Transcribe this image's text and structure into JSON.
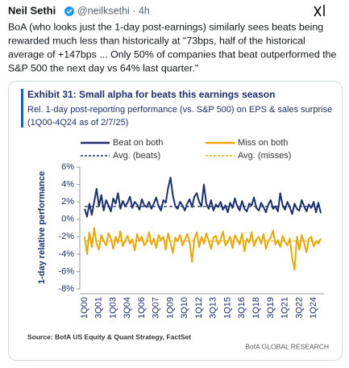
{
  "tweet": {
    "name": "Neil Sethi",
    "handle": "@neilksethi · 4h",
    "text_lines": [
      "BoA (who looks just the 1-day post-earnings) similarly sees beats being",
      "rewarded much less than historically at \"73bps, half of the historical",
      "average of +147bps ... Only 50% of companies that beat outperformed the",
      "S&P 500 the next day vs 64% last quarter.\""
    ]
  },
  "chart_data": {
    "type": "line",
    "title": "Exhibit 31: Small alpha for beats this earnings season",
    "subtitle": [
      "Rel. 1-day post-reporting performance (vs. S&P 500) on EPS & sales surprise",
      "(1Q00-4Q24 as of 2/7/25)"
    ],
    "ylabel": "1-day relative performance",
    "source": "Source: BofA US Equity & Quant Strategy, FactSet",
    "brand": "BofA GLOBAL RESEARCH",
    "categories": [
      "1Q00",
      null,
      null,
      null,
      null,
      null,
      "3Q01",
      null,
      null,
      null,
      null,
      null,
      "1Q03",
      null,
      null,
      null,
      null,
      null,
      "3Q04",
      null,
      null,
      null,
      null,
      null,
      "1Q06",
      null,
      null,
      null,
      null,
      null,
      "3Q07",
      null,
      null,
      null,
      null,
      null,
      "1Q09",
      null,
      null,
      null,
      null,
      null,
      "3Q10",
      null,
      null,
      null,
      null,
      null,
      "1Q12",
      null,
      null,
      null,
      null,
      null,
      "3Q13",
      null,
      null,
      null,
      null,
      null,
      "1Q15",
      null,
      null,
      null,
      null,
      null,
      "3Q16",
      null,
      null,
      null,
      null,
      null,
      "1Q18",
      null,
      null,
      null,
      null,
      null,
      "3Q19",
      null,
      null,
      null,
      null,
      null,
      "1Q21",
      null,
      null,
      null,
      null,
      null,
      "3Q22",
      null,
      null,
      null,
      null,
      null,
      "1Q24",
      null,
      null,
      null
    ],
    "series": [
      {
        "name": "Beat on both",
        "color": "#1a2f6e",
        "values": [
          1.2,
          0.3,
          1.8,
          0.5,
          2.0,
          3.5,
          1.5,
          2.8,
          1.0,
          2.2,
          1.6,
          0.9,
          2.4,
          1.8,
          3.0,
          1.2,
          2.1,
          1.5,
          1.9,
          2.6,
          1.3,
          2.0,
          1.7,
          1.1,
          2.3,
          1.6,
          1.4,
          2.0,
          1.2,
          1.8,
          2.5,
          1.5,
          1.0,
          2.2,
          1.9,
          3.6,
          4.8,
          2.7,
          1.5,
          1.2,
          2.0,
          1.6,
          1.0,
          1.8,
          2.3,
          1.4,
          2.6,
          3.0,
          2.0,
          1.5,
          4.0,
          1.8,
          1.2,
          2.2,
          1.0,
          1.7,
          1.4,
          2.0,
          1.1,
          1.6,
          0.8,
          1.9,
          1.3,
          2.4,
          1.5,
          1.0,
          2.1,
          1.2,
          0.9,
          1.8,
          1.6,
          2.5,
          1.3,
          1.0,
          1.9,
          1.4,
          0.8,
          1.7,
          2.2,
          1.2,
          1.5,
          0.9,
          3.0,
          1.6,
          1.1,
          2.0,
          1.4,
          0.6,
          1.8,
          1.2,
          1.0,
          2.2,
          1.5,
          0.9,
          1.7,
          1.3,
          2.0,
          0.8,
          1.9,
          0.7
        ]
      },
      {
        "name": "Miss on both",
        "color": "#f0a500",
        "values": [
          -2.0,
          -4.0,
          -1.5,
          -3.2,
          -1.0,
          -2.8,
          -3.5,
          -1.8,
          -2.5,
          -3.0,
          -1.6,
          -2.2,
          -3.4,
          -2.0,
          -2.7,
          -1.4,
          -3.1,
          -2.4,
          -1.9,
          -2.8,
          -2.3,
          -3.6,
          -1.7,
          -2.5,
          -2.0,
          -3.0,
          -2.6,
          -1.5,
          -2.9,
          -2.2,
          -3.3,
          -1.8,
          -2.4,
          -2.0,
          -3.5,
          -1.6,
          -2.7,
          -3.9,
          -2.1,
          -2.5,
          -1.8,
          -3.0,
          -2.4,
          -1.7,
          -2.6,
          -4.9,
          -2.2,
          -1.5,
          -3.2,
          -2.0,
          -2.8,
          -1.6,
          -2.5,
          -3.4,
          -2.1,
          -1.9,
          -2.9,
          -2.3,
          -1.4,
          -3.0,
          -2.6,
          -2.0,
          -3.3,
          -1.8,
          -2.4,
          -2.9,
          -1.6,
          -3.7,
          -2.2,
          -2.7,
          -1.5,
          -3.1,
          -2.3,
          -2.0,
          -2.8,
          -1.7,
          -3.4,
          -2.5,
          -2.1,
          -1.3,
          -2.9,
          -2.4,
          -3.2,
          -1.9,
          -2.6,
          -3.0,
          -2.2,
          -4.5,
          -5.8,
          -2.0,
          -3.5,
          -1.8,
          -2.7,
          -3.8,
          -2.3,
          -2.0,
          -3.1,
          -2.5,
          -2.8,
          -2.2
        ]
      }
    ],
    "reference_lines": [
      {
        "name": "Avg. (beats)",
        "color": "#1a2f6e",
        "value": 1.47
      },
      {
        "name": "Avg. (misses)",
        "color": "#f0a500",
        "value": -2.5
      }
    ],
    "ylim": [
      -8,
      6
    ],
    "yticks": [
      {
        "value": 6,
        "label": "6%"
      },
      {
        "value": 4,
        "label": "4%"
      },
      {
        "value": 2,
        "label": "2%"
      },
      {
        "value": 0,
        "label": "0%"
      },
      {
        "value": -2,
        "label": "-2%"
      },
      {
        "value": -4,
        "label": "-4%"
      },
      {
        "value": -6,
        "label": "-6%"
      },
      {
        "value": -8,
        "label": "-8%"
      }
    ]
  }
}
